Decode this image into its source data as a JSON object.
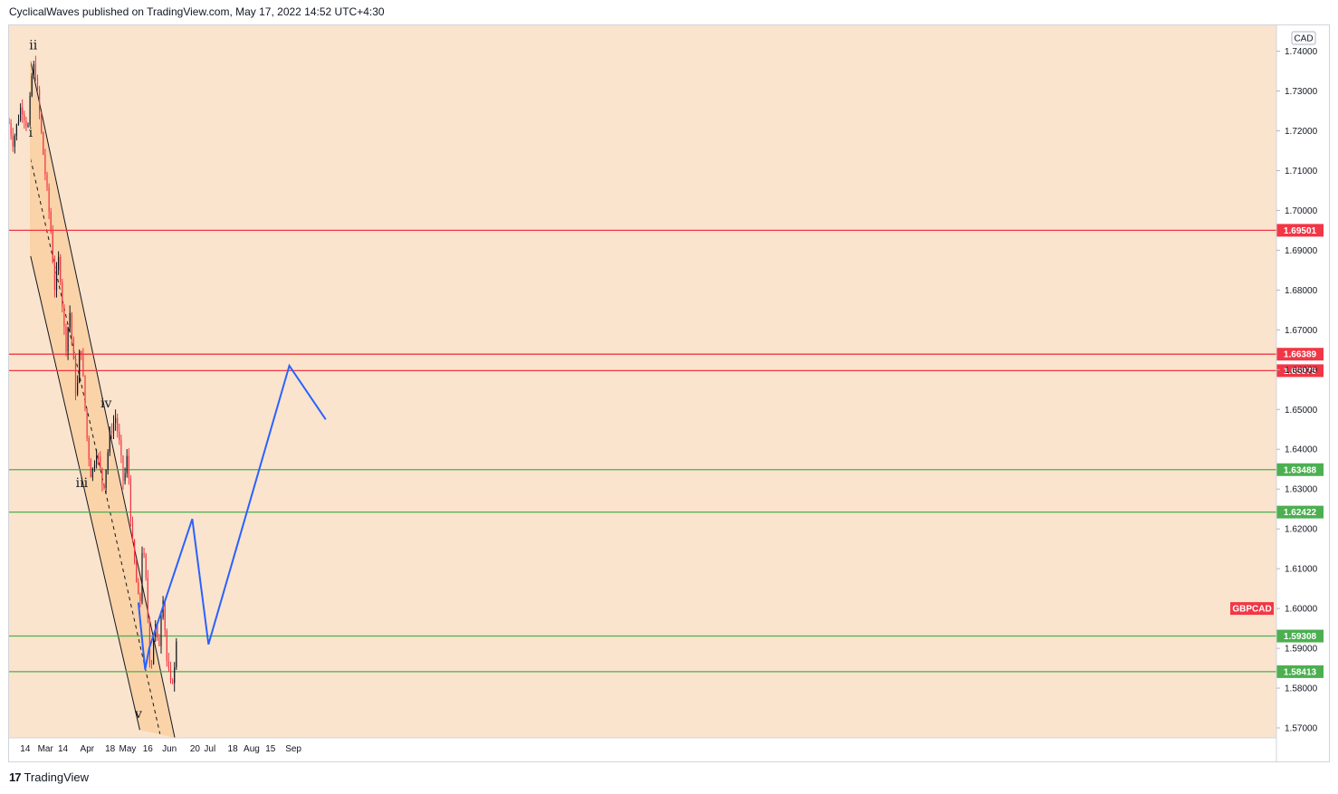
{
  "header": {
    "publisher": "CyclicalWaves published on TradingView.com, May 17, 2022 14:52 UTC+4:30"
  },
  "footer": {
    "brand": "TradingView"
  },
  "colors": {
    "background": "#fae4cd",
    "channel_fill": "#f9ce9c",
    "resistance": "#f23645",
    "support": "#4caf50",
    "projection": "#2962ff",
    "candle_up": "#131722",
    "candle_down": "#f23645"
  },
  "chart_data": {
    "type": "candlestick",
    "symbol": "GBPCAD",
    "currency": "CAD",
    "ylim": [
      1.5675,
      1.7465
    ],
    "y_ticks": [
      "1.74000",
      "1.73000",
      "1.72000",
      "1.71000",
      "1.70000",
      "1.69000",
      "1.68000",
      "1.67000",
      "1.66000",
      "1.65000",
      "1.64000",
      "1.63000",
      "1.62000",
      "1.61000",
      "1.60000",
      "1.59000",
      "1.58000",
      "1.57000"
    ],
    "x_ticks": [
      "14",
      "Mar",
      "14",
      "Apr",
      "18",
      "May",
      "16",
      "Jun",
      "20",
      "Jul",
      "18",
      "Aug",
      "15",
      "Sep"
    ],
    "levels": [
      {
        "value": 1.69501,
        "label": "1.69501",
        "kind": "resistance"
      },
      {
        "value": 1.66389,
        "label": "1.66389",
        "kind": "resistance"
      },
      {
        "value": 1.65975,
        "label": "1.65975",
        "kind": "resistance"
      },
      {
        "value": 1.63488,
        "label": "1.63488",
        "kind": "support"
      },
      {
        "value": 1.62422,
        "label": "1.62422",
        "kind": "support"
      },
      {
        "value": 1.59308,
        "label": "1.59308",
        "kind": "support"
      },
      {
        "value": 1.58413,
        "label": "1.58413",
        "kind": "support"
      }
    ],
    "wave_labels": [
      {
        "label": "ii",
        "date": "2022-02-20",
        "price": 1.7405
      },
      {
        "label": "i",
        "date": "2022-02-18",
        "price": 1.7185
      },
      {
        "label": "iii",
        "date": "2022-03-28",
        "price": 1.6305
      },
      {
        "label": "iv",
        "date": "2022-04-15",
        "price": 1.6505
      },
      {
        "label": "v",
        "date": "2022-05-09",
        "price": 1.5725
      }
    ],
    "channel": {
      "upper": [
        [
          "2022-02-18",
          1.7375
        ],
        [
          "2022-06-05",
          1.5675
        ]
      ],
      "middle": [
        [
          "2022-02-18",
          1.713
        ],
        [
          "2022-05-25",
          1.5685
        ]
      ],
      "lower": [
        [
          "2022-02-18",
          1.6885
        ],
        [
          "2022-05-10",
          1.5695
        ]
      ]
    },
    "projection": [
      [
        "2022-05-09",
        1.6015
      ],
      [
        "2022-05-14",
        1.5847
      ],
      [
        "2022-05-17",
        1.59
      ],
      [
        "2022-06-18",
        1.6225
      ],
      [
        "2022-06-30",
        1.591
      ],
      [
        "2022-08-29",
        1.661
      ],
      [
        "2022-09-25",
        1.6475
      ]
    ],
    "symbol_tag_price": 1.6
  }
}
